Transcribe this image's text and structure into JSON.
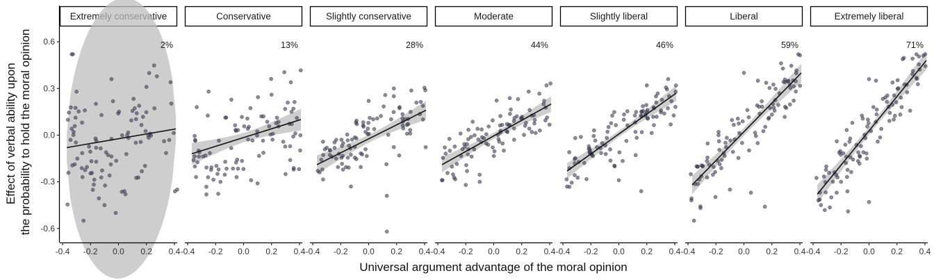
{
  "chart_data": {
    "type": "scatter",
    "xlabel": "Universal argument advantage of the moral opinion",
    "ylabel_lines": [
      "Effect of verbal ability upon",
      "the probability to hold the moral opinion"
    ],
    "xlim": [
      -0.42,
      0.42
    ],
    "ylim": [
      -0.69,
      0.69
    ],
    "xticks": [
      -0.4,
      -0.2,
      0.0,
      0.2,
      0.4
    ],
    "xtick_labels": [
      "-0.4",
      "-0.2",
      "0.0",
      "0.2",
      "0.4"
    ],
    "yticks": [
      0.6,
      0.3,
      0.0,
      -0.3,
      -0.6
    ],
    "ytick_labels": [
      "0.6",
      "0.3",
      "0.0",
      "-0.3",
      "-0.6"
    ],
    "colors": {
      "point": "#3c3c55",
      "line": "#1a1a1a",
      "band": "#bdbdbd",
      "axis": "#000000"
    },
    "panels": [
      {
        "label": "Extremely conservative",
        "percent": "2%",
        "fit": {
          "x0": -0.37,
          "y0": -0.08,
          "x1": 0.41,
          "y1": 0.04
        },
        "ci_center": 0.9,
        "ci_end": 0.085,
        "seed": 11,
        "noise": 0.2,
        "n": 95,
        "x_range": [
          -0.38,
          0.41
        ],
        "outliers": [
          [
            -0.02,
            -0.5
          ],
          [
            -0.1,
            -0.45
          ],
          [
            0.05,
            -0.38
          ],
          [
            0.42,
            -0.35
          ],
          [
            -0.05,
            0.36
          ],
          [
            0.2,
            0.31
          ],
          [
            -0.3,
            0.28
          ]
        ]
      },
      {
        "label": "Conservative",
        "percent": "13%",
        "fit": {
          "x0": -0.37,
          "y0": -0.12,
          "x1": 0.41,
          "y1": 0.1
        },
        "ci_center": 0.03,
        "ci_end": 0.07,
        "seed": 23,
        "noise": 0.14,
        "n": 95,
        "x_range": [
          -0.38,
          0.41
        ],
        "outliers": [
          [
            0.1,
            -0.31
          ],
          [
            -0.05,
            -0.27
          ],
          [
            0.3,
            -0.25
          ],
          [
            -0.25,
            0.28
          ],
          [
            0.2,
            0.26
          ]
        ]
      },
      {
        "label": "Slightly conservative",
        "percent": "28%",
        "fit": {
          "x0": -0.37,
          "y0": -0.19,
          "x1": 0.41,
          "y1": 0.16
        },
        "ci_center": 0.025,
        "ci_end": 0.06,
        "seed": 37,
        "noise": 0.1,
        "n": 95,
        "x_range": [
          -0.38,
          0.41
        ],
        "outliers": [
          [
            0.13,
            -0.62
          ],
          [
            0.13,
            -0.39
          ],
          [
            0.0,
            0.22
          ],
          [
            0.18,
            0.25
          ]
        ]
      },
      {
        "label": "Moderate",
        "percent": "44%",
        "fit": {
          "x0": -0.37,
          "y0": -0.19,
          "x1": 0.41,
          "y1": 0.2
        },
        "ci_center": 0.02,
        "ci_end": 0.05,
        "seed": 41,
        "noise": 0.085,
        "n": 95,
        "x_range": [
          -0.38,
          0.41
        ],
        "outliers": [
          [
            -0.1,
            -0.3
          ],
          [
            -0.2,
            -0.32
          ],
          [
            0.25,
            0.28
          ]
        ]
      },
      {
        "label": "Slightly liberal",
        "percent": "46%",
        "fit": {
          "x0": -0.37,
          "y0": -0.23,
          "x1": 0.41,
          "y1": 0.27
        },
        "ci_center": 0.02,
        "ci_end": 0.05,
        "seed": 53,
        "noise": 0.08,
        "n": 95,
        "x_range": [
          -0.38,
          0.41
        ],
        "outliers": [
          [
            0.0,
            -0.29
          ],
          [
            0.16,
            -0.36
          ],
          [
            -0.03,
            -0.2
          ],
          [
            0.2,
            0.32
          ]
        ]
      },
      {
        "label": "Liberal",
        "percent": "59%",
        "fit": {
          "x0": -0.37,
          "y0": -0.32,
          "x1": 0.41,
          "y1": 0.4
        },
        "ci_center": 0.025,
        "ci_end": 0.06,
        "seed": 67,
        "noise": 0.1,
        "n": 100,
        "x_range": [
          -0.38,
          0.41
        ],
        "outliers": [
          [
            0.15,
            -0.46
          ],
          [
            0.0,
            0.4
          ],
          [
            0.1,
            0.35
          ],
          [
            -0.1,
            -0.35
          ],
          [
            0.05,
            -0.37
          ]
        ]
      },
      {
        "label": "Extremely liberal",
        "percent": "71%",
        "fit": {
          "x0": -0.37,
          "y0": -0.38,
          "x1": 0.41,
          "y1": 0.48
        },
        "ci_center": 0.025,
        "ci_end": 0.06,
        "seed": 79,
        "noise": 0.09,
        "n": 100,
        "x_range": [
          -0.38,
          0.41
        ],
        "outliers": [
          [
            -0.15,
            -0.49
          ],
          [
            0.0,
            -0.43
          ],
          [
            0.0,
            0.36
          ],
          [
            0.05,
            0.35
          ],
          [
            -0.2,
            -0.3
          ]
        ]
      }
    ]
  }
}
